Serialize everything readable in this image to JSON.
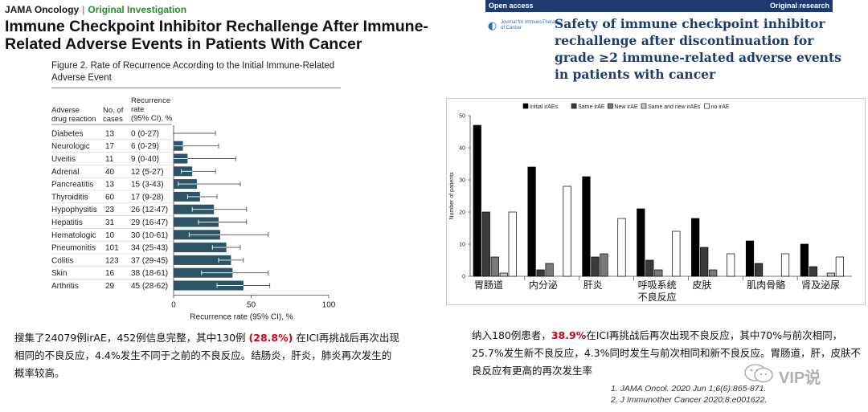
{
  "left": {
    "journal": "JAMA Oncology",
    "separator": "|",
    "article_type": "Original Investigation",
    "title": "Immune Checkpoint Inhibitor Rechallenge After Immune-Related Adverse Events in Patients With Cancer",
    "figure_caption": "Figure 2. Rate of Recurrence According to the Initial Immune-Related Adverse Event",
    "summary_pre": "搜集了24079例irAE，452例信息完整，其中130例",
    "summary_highlight": "(28.8%)",
    "summary_post": "在ICI再挑战后再次出现相同的不良反应，4.4%发生不同于之前的不良反应。结肠炎，肝炎，肺炎再次发生的概率较高。"
  },
  "right": {
    "badge_left": "Open access",
    "badge_right": "Original research",
    "journal_logo_text": "Journal for ImmunoTherapy of Cancer",
    "title": "Safety of immune checkpoint inhibitor rechallenge after discontinuation for grade ≥2 immune-related adverse events in patients with cancer",
    "summary_pre": "纳入180例患者，",
    "summary_highlight": "38.9%",
    "summary_post": "在ICI再挑战后再次出现不良反应，其中70%与前次相同，25.7%发生新不良反应，4.3%同时发生与前次相同和新不良反应。胃肠道，肝，皮肤不良反应有更高的再次发生率",
    "ref1": "1. JAMA Oncol. 2020 Jun 1;6(6):865-871.",
    "ref2": "2. J Immunother Cancer 2020;8:e001622."
  },
  "watermark": {
    "text": "VIP说",
    "icon": "wechat-icon"
  },
  "colors": {
    "bar_teal": "#2b5566",
    "navy": "#1f3a6e",
    "green": "#2e8b2e",
    "highlight_red": "#d0021b"
  },
  "chart_data": [
    {
      "type": "bar",
      "orientation": "horizontal",
      "title": "Figure 2. Rate of Recurrence According to the Initial Immune-Related Adverse Event",
      "column_headers": [
        "Adverse drug reaction",
        "No. of cases",
        "Recurrence rate (95% CI), %"
      ],
      "categories": [
        "Diabetes",
        "Neurologic",
        "Uveitis",
        "Adrenal",
        "Pancreatitis",
        "Thyroiditis",
        "Hypophysitis",
        "Hepatitis",
        "Hematologic",
        "Pneumonitis",
        "Colitis",
        "Skin",
        "Arthritis"
      ],
      "cases": [
        13,
        17,
        11,
        40,
        13,
        60,
        23,
        31,
        10,
        101,
        123,
        16,
        29
      ],
      "rate_labels": [
        "0 (0-27)",
        "6 (0-29)",
        "9 (0-40)",
        "12 (5-27)",
        "15 (3-43)",
        "17 (9-28)",
        "26 (12-47)",
        "29 (16-47)",
        "30 (10-61)",
        "34 (25-43)",
        "37 (29-45)",
        "38 (18-61)",
        "45 (28-62)"
      ],
      "values": [
        0,
        6,
        9,
        12,
        15,
        17,
        26,
        29,
        30,
        34,
        37,
        38,
        45
      ],
      "ci_low": [
        0,
        0,
        0,
        5,
        3,
        9,
        12,
        16,
        10,
        25,
        29,
        18,
        28
      ],
      "ci_high": [
        27,
        29,
        40,
        27,
        43,
        28,
        47,
        47,
        61,
        43,
        45,
        61,
        62
      ],
      "xlabel": "Recurrence rate (95% CI), %",
      "xlim": [
        0,
        100
      ],
      "xticks": [
        0,
        50,
        100
      ],
      "grid": false
    },
    {
      "type": "bar",
      "orientation": "vertical",
      "categories": [
        "胃肠道",
        "内分泌",
        "肝炎",
        "呼吸系统\n不良反应",
        "皮肤",
        "肌肉骨骼",
        "肾及泌尿"
      ],
      "series": [
        {
          "name": "Initial irAEs",
          "color": "#000000",
          "values": [
            47,
            34,
            31,
            21,
            18,
            11,
            10
          ]
        },
        {
          "name": "Same irAE",
          "color": "#3a3a3a",
          "values": [
            20,
            2,
            6,
            5,
            9,
            4,
            3
          ]
        },
        {
          "name": "New irAE",
          "color": "#7a7a7a",
          "values": [
            6,
            4,
            7,
            2,
            2,
            0,
            0
          ]
        },
        {
          "name": "Same and new irAEs",
          "color": "#c8c8c8",
          "values": [
            1,
            0,
            0,
            0,
            0,
            0,
            1
          ]
        },
        {
          "name": "no irAE",
          "color": "#ffffff",
          "values": [
            20,
            28,
            18,
            14,
            7,
            7,
            6
          ]
        }
      ],
      "ylabel": "Number of patients",
      "ylim": [
        0,
        50
      ],
      "yticks": [
        0,
        10,
        20,
        30,
        40,
        50
      ],
      "legend": "top",
      "grid": false
    }
  ]
}
